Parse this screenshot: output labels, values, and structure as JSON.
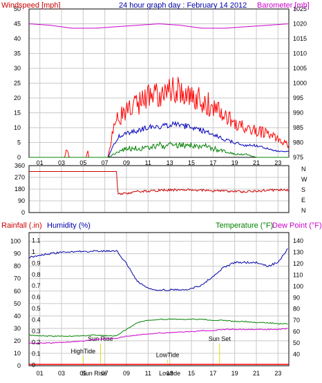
{
  "chart_data": [
    {
      "type": "line",
      "title": "24 hour graph day : February 14 2012",
      "left_axis_title": "Windspeed [mph]",
      "right_axis_title": "Barometer [mb]",
      "x_ticks": [
        "01",
        "03",
        "05",
        "07",
        "09",
        "11",
        "13",
        "15",
        "17",
        "19",
        "21",
        "23"
      ],
      "left_ticks": [
        0,
        5,
        10,
        15,
        20,
        25,
        30,
        35,
        40,
        45,
        50
      ],
      "right_ticks": [
        975,
        980,
        985,
        990,
        995,
        1000,
        1005,
        1010,
        1015,
        1020,
        1025
      ],
      "ylim": [
        0,
        50
      ],
      "y2lim": [
        975,
        1025
      ],
      "grid": true,
      "colors": {
        "gust": "#ff0000",
        "avg": "#0000bb",
        "dir_avg": "#008000",
        "baro": "#cc00cc"
      },
      "series": [
        {
          "axis": "left",
          "color": "#ff0000",
          "x": [
            0,
            3.3,
            3.5,
            3.7,
            5.3,
            5.4,
            5.5,
            7.3,
            7.6,
            7.9,
            8.3,
            9,
            10,
            11,
            12,
            13,
            14,
            15,
            16,
            17,
            18,
            19,
            20,
            21,
            22,
            23,
            24
          ],
          "values": [
            0,
            0,
            3,
            0,
            0,
            3,
            0,
            0,
            6,
            11,
            14,
            15,
            18,
            20,
            21,
            22,
            23,
            21,
            19,
            17,
            14,
            12,
            10,
            9,
            8,
            6,
            4
          ]
        },
        {
          "axis": "left",
          "color": "#0000bb",
          "x": [
            7.3,
            7.8,
            8.3,
            9,
            10,
            11,
            12,
            13,
            14,
            15,
            16,
            17,
            18,
            19,
            20,
            21,
            22,
            23,
            24
          ],
          "values": [
            0,
            4,
            7,
            8,
            9,
            10,
            10,
            11,
            11,
            10,
            9,
            8,
            6,
            5,
            4,
            4,
            3,
            2,
            2
          ]
        },
        {
          "axis": "left",
          "color": "#008000",
          "x": [
            7.3,
            7.8,
            8.3,
            9,
            10,
            11,
            12,
            13,
            14,
            15,
            16,
            17,
            18,
            19,
            20,
            21,
            22,
            23,
            24
          ],
          "values": [
            0,
            1,
            2,
            3,
            3,
            3,
            4,
            4,
            4,
            4,
            4,
            3,
            2,
            1,
            1,
            0,
            0,
            0,
            0
          ]
        },
        {
          "axis": "right",
          "color": "#cc00cc",
          "x": [
            0,
            2,
            4,
            6,
            8,
            10,
            12,
            14,
            16,
            18,
            20,
            22,
            24
          ],
          "values": [
            1020,
            1019.5,
            1018.5,
            1018.5,
            1019,
            1019.5,
            1020,
            1019.5,
            1018.5,
            1018.5,
            1019,
            1019.5,
            1020
          ]
        }
      ]
    },
    {
      "type": "line",
      "title": "",
      "left_ticks": [
        0,
        90,
        180,
        270,
        360
      ],
      "right_labels": [
        "N",
        "W",
        "S",
        "E",
        "N"
      ],
      "ylim": [
        0,
        360
      ],
      "color": "#cc0000",
      "x": [
        0,
        8.1,
        8.2,
        10,
        12,
        14,
        16,
        18,
        20,
        22,
        24
      ],
      "values": [
        315,
        315,
        140,
        160,
        170,
        175,
        170,
        165,
        160,
        170,
        175
      ]
    },
    {
      "type": "line",
      "rain_axis_title": "Rainfall (.in)",
      "humidity_axis_title": "Humidity (%)",
      "temp_axis_title": "Temperature (°F)",
      "dew_axis_title": "Dew Point (°F)",
      "rain_ticks": [
        "0",
        "0.1",
        "0.2",
        "0.3",
        "0.4",
        "0.5",
        "0.6",
        "0.7",
        "0.8",
        "0.9",
        "1",
        "1.1"
      ],
      "humidity_ticks": [
        0,
        10,
        20,
        30,
        40,
        50,
        60,
        70,
        80,
        90,
        100
      ],
      "temp_ticks": [
        40,
        50,
        60,
        70,
        80,
        90,
        100,
        110,
        120,
        130,
        140
      ],
      "x_ticks": [
        "01",
        "03",
        "05",
        "07",
        "09",
        "11",
        "13",
        "15",
        "17",
        "19",
        "21",
        "23"
      ],
      "annotations": [
        {
          "text": "HighTide",
          "x": 5.0,
          "pct": 10,
          "color": "#dddd00"
        },
        {
          "text": "Sun Rise",
          "x": 6.6,
          "pct": 20,
          "color": "#dddd00"
        },
        {
          "text": "LowTide",
          "x": 12.8,
          "pct": 7,
          "color": "#dddd00"
        },
        {
          "text": "Sun Set",
          "x": 17.6,
          "pct": 20,
          "color": "#dddd00"
        }
      ],
      "hour_labels": {
        "6": "Sun Rise",
        "13": "Lowtide"
      },
      "series": [
        {
          "axis": "humidity",
          "color": "#0000aa",
          "x": [
            0,
            1,
            3,
            5,
            6.5,
            7.5,
            8.1,
            9,
            10,
            11,
            12,
            13,
            14,
            15,
            16,
            17,
            18,
            19,
            20,
            21,
            22,
            23,
            24
          ],
          "values": [
            87,
            89,
            91,
            92,
            92,
            92,
            92,
            82,
            68,
            62,
            61,
            61,
            61,
            62,
            65,
            72,
            79,
            83,
            83,
            83,
            80,
            83,
            95
          ]
        },
        {
          "axis": "temp",
          "color": "#008000",
          "x": [
            0,
            2,
            4,
            6,
            8,
            9,
            10,
            11,
            12,
            13,
            14,
            15,
            16,
            17,
            18,
            19,
            20,
            21,
            22,
            23,
            24
          ],
          "values": [
            57,
            56,
            56,
            57,
            56,
            62,
            68,
            70,
            71,
            71,
            71,
            71,
            71,
            70,
            70,
            69,
            69,
            68,
            68,
            67,
            67
          ]
        },
        {
          "axis": "temp",
          "color": "#cc00cc",
          "x": [
            0,
            2,
            4,
            6,
            8,
            9,
            10,
            11,
            12,
            13,
            14,
            15,
            16,
            17,
            18,
            19,
            20,
            21,
            22,
            23,
            24
          ],
          "values": [
            50,
            50,
            51,
            53,
            54,
            56,
            57,
            58,
            59,
            59,
            60,
            60,
            61,
            61,
            62,
            62,
            62,
            62,
            62,
            62,
            63
          ]
        }
      ]
    }
  ]
}
